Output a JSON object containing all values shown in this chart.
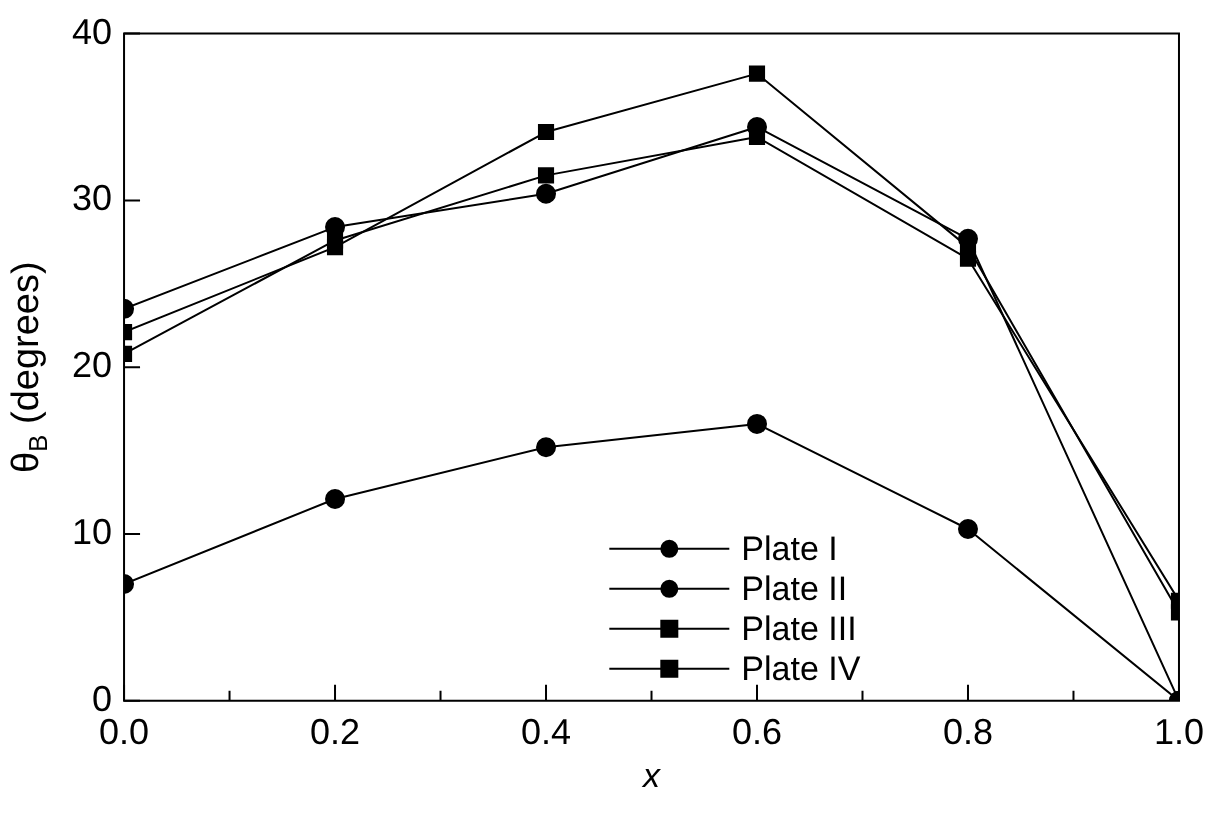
{
  "chart_data": {
    "type": "line",
    "xlabel": "x",
    "ylabel": "θ$_{B}$ (degrees)",
    "x": [
      0,
      0.2,
      0.4,
      0.6,
      0.8,
      1.0
    ],
    "series": [
      {
        "name": "Plate I",
        "color": "#000000",
        "marker": "circle",
        "values": [
          7,
          12.1,
          15.2,
          16.6,
          10.3,
          0
        ]
      },
      {
        "name": "Plate II",
        "color": "#000000",
        "marker": "circle",
        "values": [
          23.5,
          28.4,
          30.4,
          34.4,
          27.7,
          0
        ]
      },
      {
        "name": "Plate III",
        "color": "#000000",
        "marker": "square",
        "values": [
          20.8,
          27.6,
          31.5,
          33.8,
          26.5,
          6.0
        ]
      },
      {
        "name": "Plate IV",
        "color": "#000000",
        "marker": "square",
        "values": [
          22.1,
          27.2,
          34.1,
          37.6,
          27.2,
          5.3
        ]
      }
    ],
    "xlim": [
      0,
      1.0
    ],
    "xticks": [
      {
        "value": 0,
        "label": "0.0"
      },
      0.2,
      0.4,
      0.6,
      0.8,
      {
        "value": 1.0,
        "label": "1.0"
      }
    ],
    "ylim": [
      0,
      40
    ],
    "yticks": [
      0,
      10,
      20,
      30,
      40
    ],
    "grid": false,
    "legend": "bottom right",
    "line_style": "solid"
  }
}
